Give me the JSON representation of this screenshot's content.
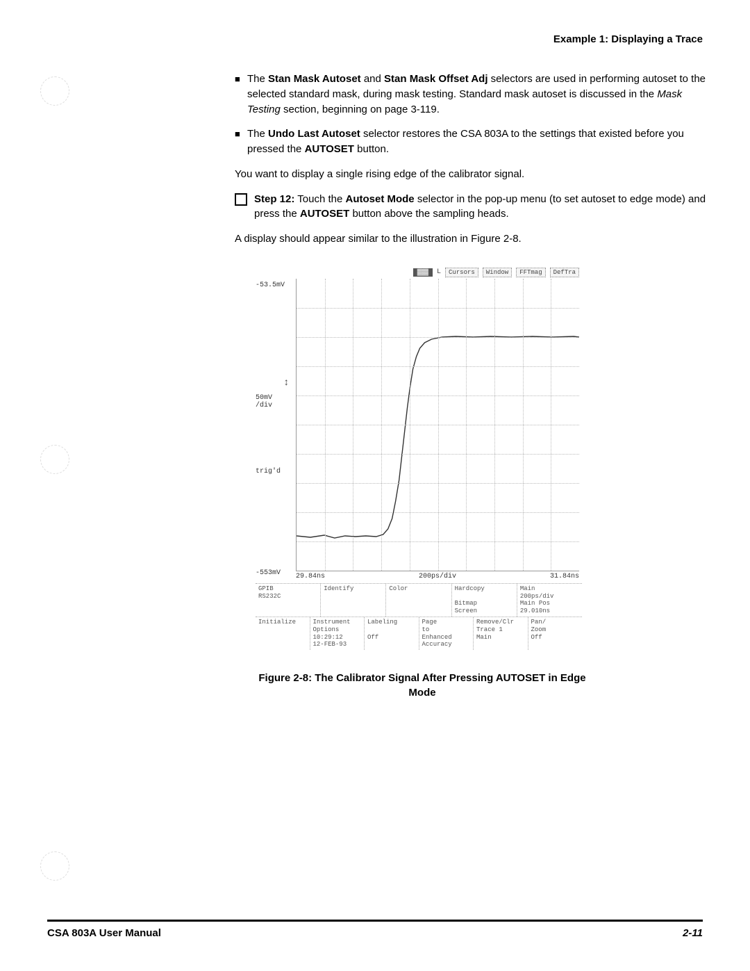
{
  "header": {
    "title": "Example 1: Displaying a Trace"
  },
  "bullets": [
    {
      "pre": "The ",
      "bold1": "Stan Mask Autoset",
      "mid1": " and ",
      "bold2": "Stan Mask Offset Adj",
      "mid2": " selectors are used in performing autoset to the selected standard mask, during mask testing. Standard mask autoset is discussed in the ",
      "ital": "Mask Testing",
      "post": " section, beginning on page 3-119."
    },
    {
      "pre": "The ",
      "bold1": "Undo Last Autoset",
      "mid1": " selector restores the CSA 803A to the settings that existed before you pressed the ",
      "bold2": "AUTOSET",
      "mid2": " button.",
      "ital": "",
      "post": ""
    }
  ],
  "para1": "You want to display a single rising edge of the calibrator signal.",
  "step12": {
    "label": "Step 12:",
    "t1": "  Touch the ",
    "b1": "Autoset Mode",
    "t2": " selector in the pop-up menu (to set autoset to edge mode) and press the ",
    "b2": "AUTOSET",
    "t3": " button above the sampling heads."
  },
  "para2": "A display should appear similar to the illustration in Figure 2-8.",
  "scope": {
    "menu": {
      "selected": "L",
      "btn1": "Cursors",
      "btn2": "Window",
      "btn3": "FFTmag",
      "btn4": "DefTra"
    },
    "y_top": "-53.5mV",
    "y_scale": "50mV\n/div",
    "y_trig": "trig'd",
    "y_bot": "-553mV",
    "x_left": "29.84ns",
    "x_mid": "200ps/div",
    "x_right": "31.84ns",
    "grid": {
      "background": "#ffffff",
      "line": "#bbbbbb"
    },
    "trace": {
      "color": "#333333",
      "width": 1.4,
      "points": [
        [
          0,
          370
        ],
        [
          20,
          372
        ],
        [
          40,
          369
        ],
        [
          55,
          373
        ],
        [
          70,
          370
        ],
        [
          85,
          371
        ],
        [
          100,
          370
        ],
        [
          115,
          371
        ],
        [
          125,
          368
        ],
        [
          132,
          360
        ],
        [
          138,
          345
        ],
        [
          143,
          320
        ],
        [
          148,
          290
        ],
        [
          152,
          255
        ],
        [
          156,
          220
        ],
        [
          160,
          185
        ],
        [
          164,
          155
        ],
        [
          168,
          130
        ],
        [
          173,
          112
        ],
        [
          178,
          100
        ],
        [
          185,
          92
        ],
        [
          195,
          87
        ],
        [
          210,
          84
        ],
        [
          230,
          83
        ],
        [
          255,
          84
        ],
        [
          280,
          83
        ],
        [
          310,
          84
        ],
        [
          340,
          83
        ],
        [
          370,
          84
        ],
        [
          400,
          83
        ],
        [
          408,
          84
        ]
      ]
    },
    "panels": {
      "row1": [
        "GPIB\nRS232C",
        "Identify",
        "Color",
        "Hardcopy\n\nBitmap\nScreen",
        "Main\n200ps/div\nMain Pos\n29.010ns"
      ],
      "row2": [
        "Initialize",
        "Instrument\nOptions\n10:29:12\n12-FEB-93",
        "Labeling\n\nOff",
        "Page\nto\nEnhanced\nAccuracy",
        "Remove/Clr\nTrace 1\nMain",
        "Pan/\nZoom\nOff"
      ]
    }
  },
  "figcaption": "Figure 2-8:  The Calibrator Signal After Pressing AUTOSET in Edge Mode",
  "footer": {
    "left": "CSA 803A User Manual",
    "right": "2-11"
  }
}
